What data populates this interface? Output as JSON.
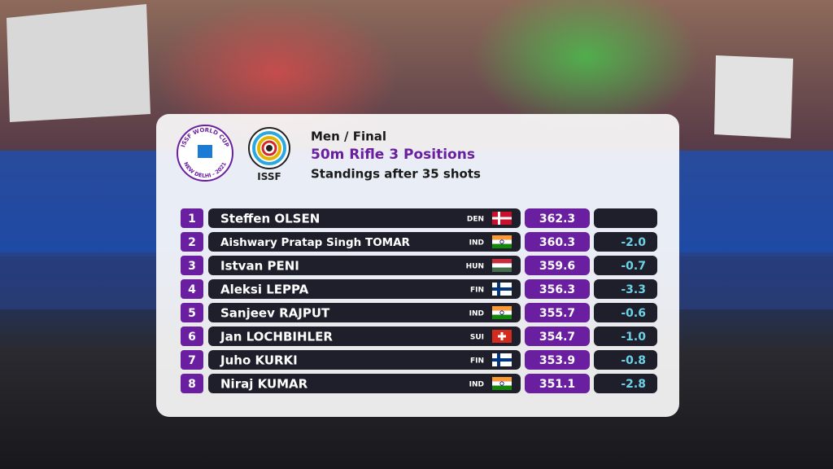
{
  "logo": {
    "cup_top": "ISSF WORLD CUP",
    "cup_bottom": "NEW DELHI - 2021",
    "org": "ISSF"
  },
  "header": {
    "event": "Men / Final",
    "title": "50m Rifle 3 Positions",
    "subtitle": "Standings after 35 shots"
  },
  "table": {
    "rows": [
      {
        "rank": "1",
        "name": "Steffen OLSEN",
        "nation": "DEN",
        "score": "362.3"
      },
      {
        "rank": "2",
        "name": "Aishwary Pratap Singh TOMAR",
        "nation": "IND",
        "score": "360.3",
        "diff": "-2.0"
      },
      {
        "rank": "3",
        "name": "Istvan PENI",
        "nation": "HUN",
        "score": "359.6",
        "diff": "-0.7"
      },
      {
        "rank": "4",
        "name": "Aleksi LEPPA",
        "nation": "FIN",
        "score": "356.3",
        "diff": "-3.3"
      },
      {
        "rank": "5",
        "name": "Sanjeev RAJPUT",
        "nation": "IND",
        "score": "355.7",
        "diff": "-0.6"
      },
      {
        "rank": "6",
        "name": "Jan LOCHBIHLER",
        "nation": "SUI",
        "score": "354.7",
        "diff": "-1.0"
      },
      {
        "rank": "7",
        "name": "Juho KURKI",
        "nation": "FIN",
        "score": "353.9",
        "diff": "-0.8"
      },
      {
        "rank": "8",
        "name": "Niraj KUMAR",
        "nation": "IND",
        "score": "351.1",
        "diff": "-2.8"
      }
    ]
  }
}
